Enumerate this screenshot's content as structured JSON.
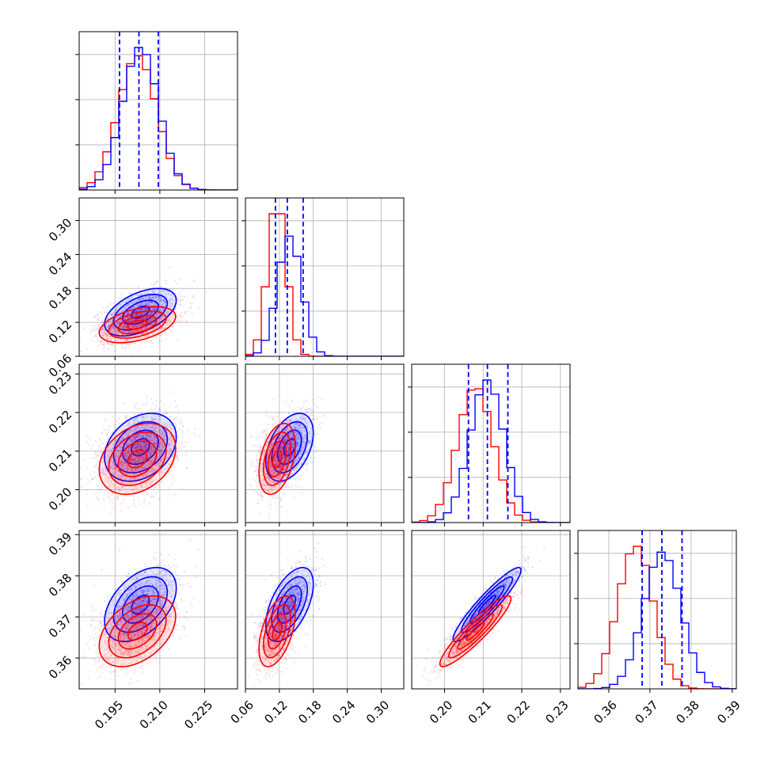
{
  "chart_data": {
    "type": "corner",
    "title": "",
    "colors": {
      "series_a": "#0000ff",
      "series_b": "#ff0000",
      "grid": "#b0b0b0",
      "frame": "#000000"
    },
    "grid": true,
    "variables": [
      {
        "range": [
          0.183,
          0.236
        ],
        "ticks": [
          "0.195",
          "0.210",
          "0.225"
        ],
        "a": {
          "mean": 0.2035,
          "sd": 0.006,
          "quantiles": [
            0.1965,
            0.203,
            0.2095
          ]
        },
        "b": {
          "mean": 0.2025,
          "sd": 0.0064
        }
      },
      {
        "range": [
          0.06,
          0.34
        ],
        "ticks": [
          "0.06",
          "0.12",
          "0.18",
          "0.24",
          "0.30"
        ],
        "a": {
          "mean": 0.138,
          "sd": 0.021,
          "quantiles": [
            0.113,
            0.134,
            0.162
          ]
        },
        "b": {
          "mean": 0.116,
          "sd": 0.016
        }
      },
      {
        "range": [
          0.1915,
          0.2325
        ],
        "ticks": [
          "0.20",
          "0.21",
          "0.22",
          "0.23"
        ],
        "a": {
          "mean": 0.211,
          "sd": 0.0044,
          "quantiles": [
            0.2062,
            0.2111,
            0.2164
          ]
        },
        "b": {
          "mean": 0.208,
          "sd": 0.0046
        }
      },
      {
        "range": [
          0.3525,
          0.391
        ],
        "ticks": [
          "0.36",
          "0.37",
          "0.38",
          "0.39"
        ],
        "a": {
          "mean": 0.373,
          "sd": 0.0045,
          "quantiles": [
            0.3681,
            0.3729,
            0.3778
          ]
        },
        "b": {
          "mean": 0.3665,
          "sd": 0.0043
        }
      }
    ],
    "correlations": {
      "1-0": {
        "a": 0.5,
        "b": 0.45
      },
      "2-0": {
        "a": 0.3,
        "b": 0.3
      },
      "2-1": {
        "a": 0.42,
        "b": 0.38
      },
      "3-0": {
        "a": 0.45,
        "b": 0.42
      },
      "3-1": {
        "a": 0.55,
        "b": 0.5
      },
      "3-2": {
        "a": 0.93,
        "b": 0.92
      }
    },
    "contour_levels_sigma": [
      0.5,
      1.0,
      1.5,
      2.0
    ]
  }
}
